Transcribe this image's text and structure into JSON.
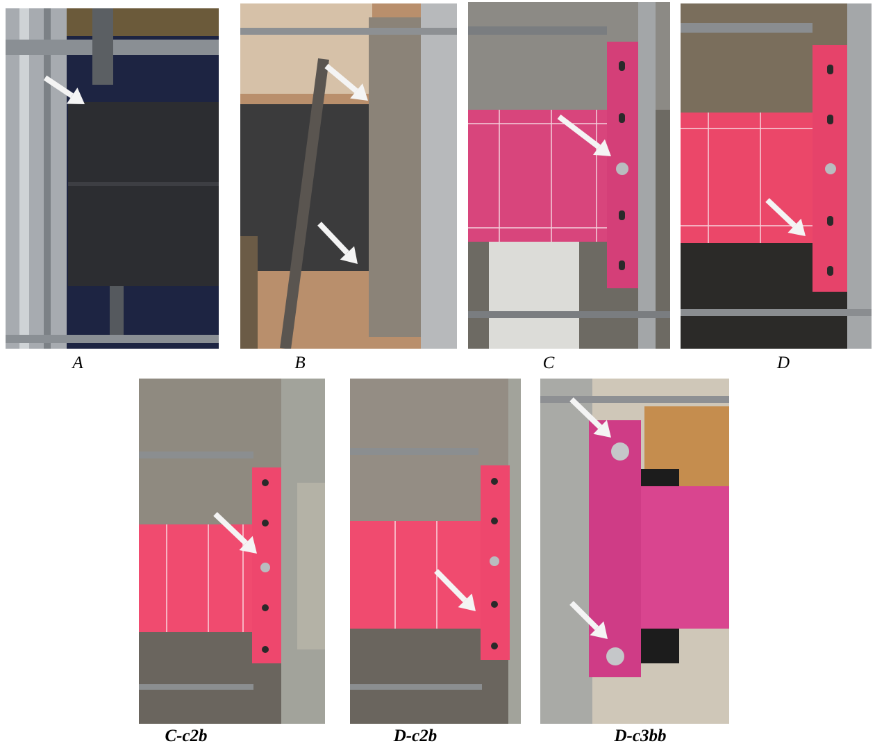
{
  "figure": {
    "panels": [
      {
        "label": "A"
      },
      {
        "label": "B"
      },
      {
        "label": "C"
      },
      {
        "label": "D"
      },
      {
        "label": "C-c2b"
      },
      {
        "label": "D-c2b"
      },
      {
        "label": "D-c3bb"
      }
    ]
  }
}
